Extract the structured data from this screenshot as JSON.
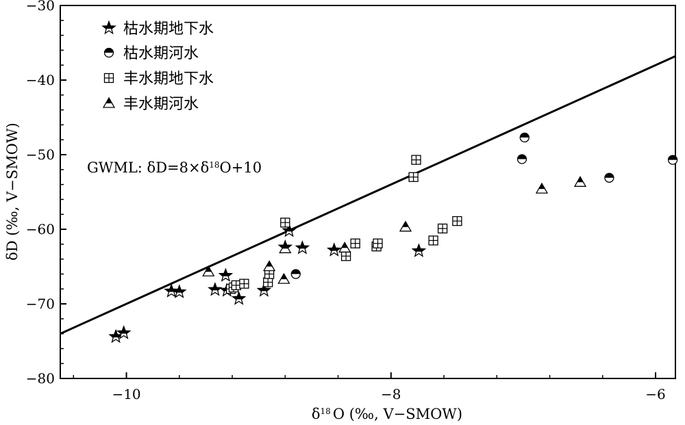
{
  "chart_data": {
    "type": "scatter",
    "xlabel_main": "δ",
    "xlabel_sup": "18",
    "xlabel_rest": "O (‰, V−SMOW)",
    "ylabel": "δD (‰, V−SMOW)",
    "xlim": [
      -10.5,
      -5.85
    ],
    "ylim": [
      -80,
      -30
    ],
    "x_ticks": [
      -10,
      -8,
      -6
    ],
    "x_tick_labels": [
      "−10",
      "−8",
      "−6"
    ],
    "y_ticks": [
      -80,
      -70,
      -60,
      -50,
      -40,
      -30
    ],
    "y_tick_labels": [
      "−80",
      "−70",
      "−60",
      "−50",
      "−40",
      "−30"
    ],
    "legend_position": "top-left",
    "annotation": {
      "pre": "GWML: δD=8×δ",
      "sup": "18",
      "post": "O+10"
    },
    "line": {
      "name": "GWML",
      "slope": 8,
      "intercept": 10
    },
    "series": [
      {
        "name": "枯水期地下水",
        "marker": "star",
        "points": [
          [
            -10.08,
            -74.4
          ],
          [
            -10.02,
            -73.9
          ],
          [
            -9.66,
            -68.3
          ],
          [
            -9.6,
            -68.4
          ],
          [
            -9.33,
            -68.1
          ],
          [
            -9.25,
            -66.2
          ],
          [
            -9.24,
            -68.2
          ],
          [
            -9.15,
            -69.3
          ],
          [
            -8.96,
            -68.2
          ],
          [
            -8.8,
            -62.4
          ],
          [
            -8.77,
            -60.2
          ],
          [
            -8.67,
            -62.5
          ],
          [
            -8.43,
            -62.8
          ],
          [
            -7.79,
            -62.9
          ]
        ]
      },
      {
        "name": "枯水期河水",
        "marker": "half-circle",
        "points": [
          [
            -8.72,
            -66.0
          ],
          [
            -6.99,
            -47.7
          ],
          [
            -7.01,
            -50.6
          ],
          [
            -6.35,
            -53.1
          ],
          [
            -5.87,
            -50.7
          ]
        ]
      },
      {
        "name": "丰水期地下水",
        "marker": "square-plus",
        "points": [
          [
            -8.8,
            -59.1
          ],
          [
            -8.34,
            -63.6
          ],
          [
            -8.27,
            -61.9
          ],
          [
            -8.11,
            -62.3
          ],
          [
            -8.1,
            -61.9
          ],
          [
            -7.83,
            -53.0
          ],
          [
            -7.81,
            -50.7
          ],
          [
            -7.68,
            -61.5
          ],
          [
            -7.61,
            -59.9
          ],
          [
            -7.5,
            -58.9
          ],
          [
            -9.21,
            -68.0
          ],
          [
            -9.19,
            -67.8
          ],
          [
            -9.17,
            -67.5
          ],
          [
            -9.11,
            -67.3
          ],
          [
            -8.93,
            -67.1
          ],
          [
            -8.92,
            -66.0
          ]
        ]
      },
      {
        "name": "丰水期河水",
        "marker": "half-triangle",
        "points": [
          [
            -9.38,
            -65.7
          ],
          [
            -8.92,
            -65.0
          ],
          [
            -8.8,
            -62.6
          ],
          [
            -8.81,
            -66.7
          ],
          [
            -8.35,
            -62.5
          ],
          [
            -7.89,
            -59.7
          ],
          [
            -6.86,
            -54.6
          ],
          [
            -6.57,
            -53.7
          ]
        ]
      }
    ]
  }
}
